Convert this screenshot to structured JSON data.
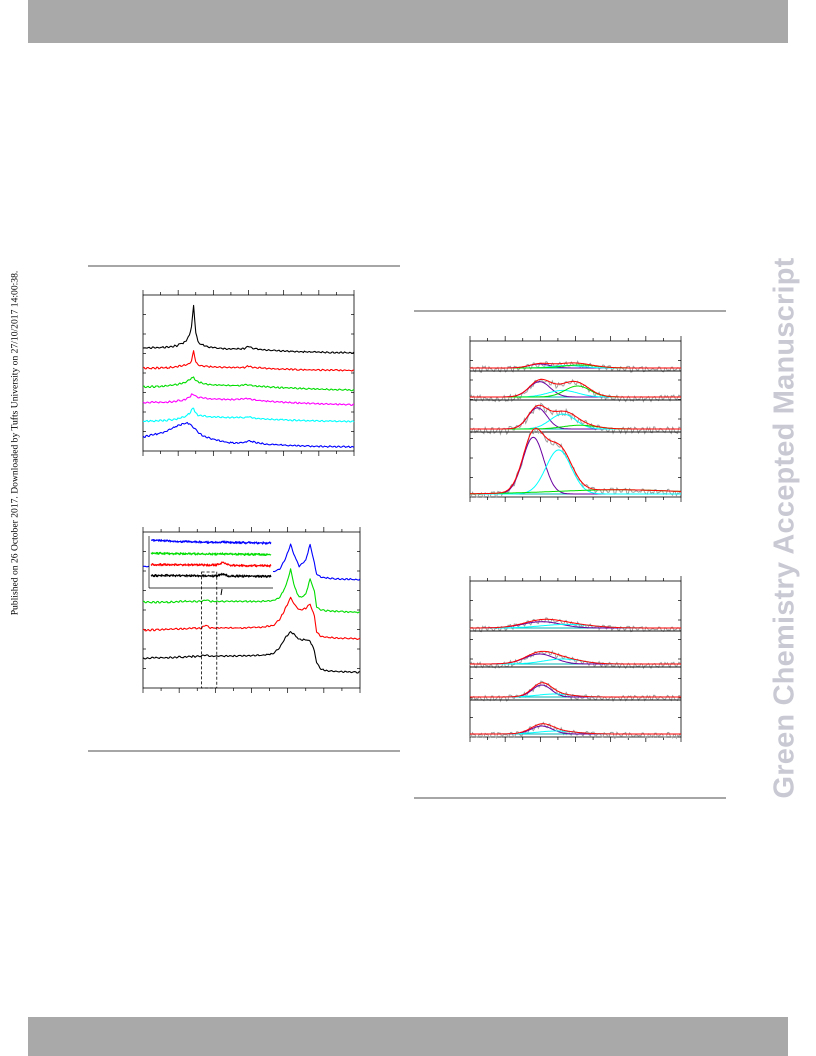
{
  "header_band": {
    "color": "#a9a9a9"
  },
  "footer_band": {
    "color": "#a9a9a9"
  },
  "side_note": "Published on 26 October 2017. Downloaded by Tufts University on 27/10/2017 14:00:38.",
  "watermark": "Green Chemistry Accepted Manuscript",
  "colors": {
    "black": "#000000",
    "red": "#ff0000",
    "green": "#00dd00",
    "magenta": "#ff00ff",
    "cyan": "#00ffff",
    "blue": "#0000ff",
    "grey": "#a0a0a0",
    "purple": "#6a00a0",
    "rule": "#a6a6a6"
  },
  "chart_data": [
    {
      "type": "line",
      "title": "",
      "xlabel": "",
      "ylabel": "",
      "axis_ticks": false,
      "tick_labels_printed": false,
      "grid": false,
      "legend": "none",
      "note": "x in arbitrary units 0-100; y = offset trace intensity in arbitrary units",
      "x": [
        0,
        10,
        16,
        20,
        22,
        23,
        24,
        25,
        26,
        28,
        32,
        40,
        45,
        48,
        50,
        52,
        55,
        60,
        70,
        80,
        90,
        100
      ],
      "series": [
        {
          "color": "#000000",
          "values": [
            66,
            66.5,
            67.5,
            70,
            74,
            80,
            93,
            76,
            70,
            68,
            66.5,
            65.5,
            65.5,
            65.5,
            67,
            65.7,
            65.2,
            64.5,
            63.8,
            63.5,
            63.2,
            63
          ]
        },
        {
          "color": "#ff0000",
          "values": [
            53,
            53.3,
            54,
            55,
            56,
            58,
            64,
            57.5,
            55,
            54.5,
            54,
            53.5,
            53.5,
            53.5,
            54.5,
            53.6,
            53.3,
            52.8,
            52.3,
            52,
            51.8,
            51.6
          ]
        },
        {
          "color": "#00dd00",
          "values": [
            41,
            41.5,
            42.5,
            44,
            45.5,
            46.5,
            47,
            45.5,
            44.5,
            43.5,
            42.5,
            42,
            42,
            42.5,
            42.3,
            41.8,
            41.5,
            41,
            40.3,
            39.8,
            39.4,
            39
          ]
        },
        {
          "color": "#ff00ff",
          "values": [
            31,
            31.3,
            32,
            33,
            34.5,
            36,
            36.5,
            35,
            34.5,
            34,
            33.5,
            33,
            33,
            33.5,
            33.6,
            32.8,
            32.4,
            31.8,
            31,
            30.4,
            30,
            29.6
          ]
        },
        {
          "color": "#00ffff",
          "values": [
            19,
            19.5,
            20.5,
            22,
            24,
            26,
            27.5,
            24,
            23,
            22.5,
            22,
            21.5,
            21.5,
            21.5,
            22,
            21.2,
            20.8,
            20.3,
            19.8,
            19.4,
            19.1,
            18.9
          ]
        },
        {
          "color": "#0000ff",
          "values": [
            9,
            12,
            16,
            18,
            17.5,
            16.5,
            15,
            13.5,
            12,
            10,
            8,
            5.5,
            5,
            5.5,
            6.5,
            6,
            5,
            4.2,
            3.5,
            3,
            2.8,
            2.7
          ]
        }
      ],
      "tick_count": 12
    },
    {
      "type": "line",
      "title": "",
      "xlabel": "",
      "ylabel": "",
      "axis_ticks": false,
      "tick_labels_printed": false,
      "grid": false,
      "legend": "none",
      "note": "x in arbitrary units 0-100; y = offset trace intensity in arbitrary units; dashed box marks the zoomed region shown in the inset",
      "x": [
        0,
        10,
        20,
        27,
        29,
        31,
        35,
        45,
        55,
        60,
        63,
        66,
        68,
        70,
        72,
        75,
        77,
        79,
        80,
        82,
        85,
        90,
        100
      ],
      "series": [
        {
          "color": "#0000ff",
          "values": [
            78,
            77,
            76,
            75.5,
            77,
            75.5,
            75,
            74.5,
            74,
            74.5,
            76,
            84,
            92,
            84,
            78,
            82,
            92,
            80,
            73,
            71,
            70.5,
            70,
            69.5
          ]
        },
        {
          "color": "#00dd00",
          "values": [
            55,
            55,
            55.5,
            55.5,
            56.5,
            55.5,
            55.5,
            55.5,
            55.5,
            56,
            58,
            66,
            76,
            64,
            58,
            60,
            70,
            62,
            52,
            50,
            49.5,
            49,
            48.5
          ]
        },
        {
          "color": "#ff0000",
          "values": [
            37,
            37.5,
            38,
            38.5,
            40.5,
            38.5,
            38.5,
            38.5,
            39,
            40,
            44,
            52,
            58,
            53,
            50,
            51,
            54,
            46,
            36,
            33,
            32.5,
            32,
            31.5
          ]
        },
        {
          "color": "#000000",
          "values": [
            19,
            19.5,
            20,
            20.5,
            21,
            20.5,
            20.5,
            20.5,
            21,
            22,
            26,
            33,
            36,
            34,
            31,
            31,
            30,
            24,
            16,
            12,
            11,
            10.5,
            10
          ]
        }
      ],
      "inset": {
        "x": [
          0,
          10,
          20,
          30,
          40,
          45,
          50,
          55,
          60,
          65,
          70,
          75,
          80,
          90,
          100
        ],
        "series": [
          {
            "color": "#0000ff",
            "values": [
              92,
              91,
              89.5,
              89,
              88.5,
              88,
              88,
              87.8,
              88.5,
              87.7,
              87.5,
              87.2,
              87,
              86.8,
              86.5
            ]
          },
          {
            "color": "#00dd00",
            "values": [
              67,
              66.5,
              66,
              65.8,
              65.5,
              65.3,
              65.2,
              65.2,
              65.8,
              65.1,
              65,
              64.8,
              64.7,
              64.5,
              64.3
            ]
          },
          {
            "color": "#ff0000",
            "values": [
              45,
              45,
              44.8,
              44.5,
              44.3,
              44,
              43.8,
              44.5,
              49,
              44,
              43.5,
              43.2,
              43,
              42.8,
              42.6
            ]
          },
          {
            "color": "#000000",
            "values": [
              24,
              24,
              23.8,
              23.6,
              23.4,
              23.2,
              23.1,
              23.5,
              27,
              23.2,
              23,
              22.8,
              22.7,
              22.5,
              22.3
            ]
          }
        ]
      },
      "tick_count": 12
    },
    {
      "type": "line",
      "title": "",
      "xlabel": "",
      "ylabel": "",
      "axis_ticks": false,
      "tick_labels_printed": false,
      "grid": false,
      "legend": "none",
      "note": "four stacked peak-fit panels; x in arbitrary units 0-100; each row: baseline, fitted components, envelope fit",
      "rows": [
        {
          "baseline": 0,
          "components": [
            {
              "color": "#6a00a0",
              "center": 33,
              "width": 5,
              "height": 4
            },
            {
              "color": "#00ffff",
              "center": 46,
              "width": 7,
              "height": 2.5
            },
            {
              "color": "#00dd00",
              "center": 52,
              "width": 8,
              "height": 3
            }
          ],
          "envelope_color": "#ff0000",
          "raw_color": "#a0a0a0"
        },
        {
          "baseline": 0,
          "components": [
            {
              "color": "#6a00a0",
              "center": 33,
              "width": 5,
              "height": 14
            },
            {
              "color": "#00ffff",
              "center": 44,
              "width": 7,
              "height": 6
            },
            {
              "color": "#00dd00",
              "center": 51,
              "width": 6,
              "height": 10
            }
          ],
          "envelope_color": "#ff0000",
          "raw_color": "#a0a0a0"
        },
        {
          "baseline": 0,
          "components": [
            {
              "color": "#6a00a0",
              "center": 32,
              "width": 4.5,
              "height": 17
            },
            {
              "color": "#00ffff",
              "center": 44,
              "width": 6,
              "height": 12
            },
            {
              "color": "#00dd00",
              "center": 52,
              "width": 8,
              "height": 3
            }
          ],
          "envelope_color": "#ff0000",
          "raw_color": "#a0a0a0"
        },
        {
          "baseline": 0,
          "components": [
            {
              "color": "#6a00a0",
              "center": 30,
              "width": 5,
              "height": 54
            },
            {
              "color": "#00ffff",
              "center": 42,
              "width": 6,
              "height": 42
            },
            {
              "color": "#00dd00",
              "center": 70,
              "width": 30,
              "height": 4
            }
          ],
          "envelope_color": "#ff0000",
          "raw_color": "#a0a0a0"
        }
      ],
      "tick_count": 12
    },
    {
      "type": "line",
      "title": "",
      "xlabel": "",
      "ylabel": "",
      "axis_ticks": false,
      "tick_labels_printed": false,
      "grid": false,
      "legend": "none",
      "note": "four stacked noisy peak-fit panels; x in arbitrary units 0-100",
      "rows": [
        {
          "baseline": 0,
          "components": [
            {
              "color": "#6a00a0",
              "center": 34,
              "width": 9,
              "height": 7
            },
            {
              "color": "#00ffff",
              "center": 46,
              "width": 12,
              "height": 4
            }
          ],
          "envelope_color": "#ff0000",
          "raw_color": "#a0a0a0"
        },
        {
          "baseline": 0,
          "components": [
            {
              "color": "#6a00a0",
              "center": 33,
              "width": 7,
              "height": 10
            },
            {
              "color": "#00ffff",
              "center": 44,
              "width": 9,
              "height": 5
            }
          ],
          "envelope_color": "#ff0000",
          "raw_color": "#a0a0a0"
        },
        {
          "baseline": 0,
          "components": [
            {
              "color": "#6a00a0",
              "center": 34,
              "width": 4.5,
              "height": 12
            },
            {
              "color": "#00ffff",
              "center": 40,
              "width": 8,
              "height": 3
            }
          ],
          "envelope_color": "#ff0000",
          "raw_color": "#a0a0a0"
        },
        {
          "baseline": 0,
          "components": [
            {
              "color": "#6a00a0",
              "center": 34,
              "width": 5,
              "height": 8
            },
            {
              "color": "#00ffff",
              "center": 41,
              "width": 9,
              "height": 3
            }
          ],
          "envelope_color": "#ff0000",
          "raw_color": "#a0a0a0"
        }
      ],
      "tick_count": 12
    }
  ]
}
